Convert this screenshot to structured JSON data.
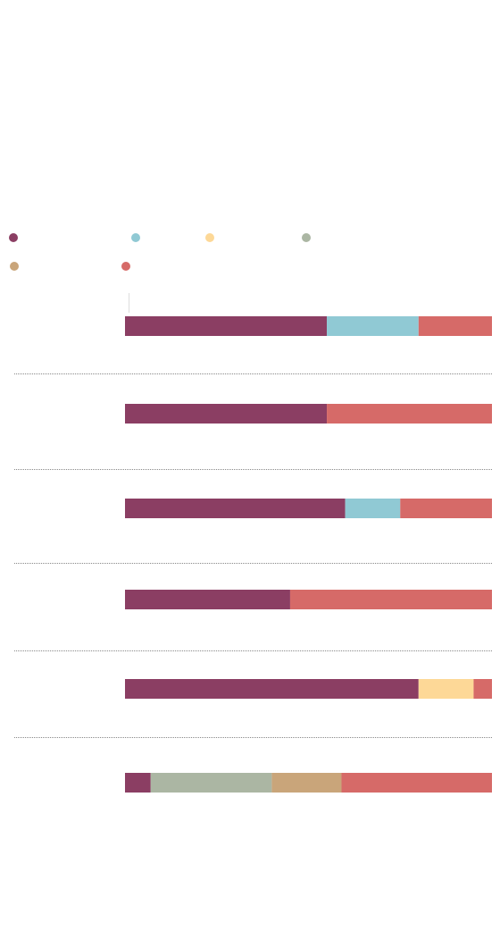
{
  "colors": {
    "plum": "#8b3e63",
    "light_blue": "#90c9d4",
    "yellow": "#fdd897",
    "sage": "#abb6a3",
    "tan": "#c9a57a",
    "coral": "#d66a68",
    "divider": "#888888",
    "axis": "#dddddd"
  },
  "chart_data": {
    "type": "bar",
    "orientation": "horizontal",
    "stacked": true,
    "title": "",
    "subtitle": "",
    "xlabel": "",
    "ylabel": "",
    "xlim": [
      0,
      100
    ],
    "grid": false,
    "legend_position": "top-left",
    "categories": [
      "",
      "",
      "",
      "",
      "",
      ""
    ],
    "series": [
      {
        "color": "#8b3e63",
        "values": [
          55,
          55,
          60,
          45,
          80,
          7
        ]
      },
      {
        "color": "#90c9d4",
        "values": [
          25,
          0,
          15,
          0,
          0,
          0
        ]
      },
      {
        "color": "#fdd897",
        "values": [
          0,
          0,
          0,
          0,
          15,
          0
        ]
      },
      {
        "color": "#abb6a3",
        "values": [
          0,
          0,
          0,
          0,
          0,
          33
        ]
      },
      {
        "color": "#c9a57a",
        "values": [
          0,
          0,
          0,
          0,
          0,
          19
        ]
      },
      {
        "color": "#d66a68",
        "values": [
          20,
          45,
          25,
          55,
          5,
          41
        ]
      }
    ]
  }
}
